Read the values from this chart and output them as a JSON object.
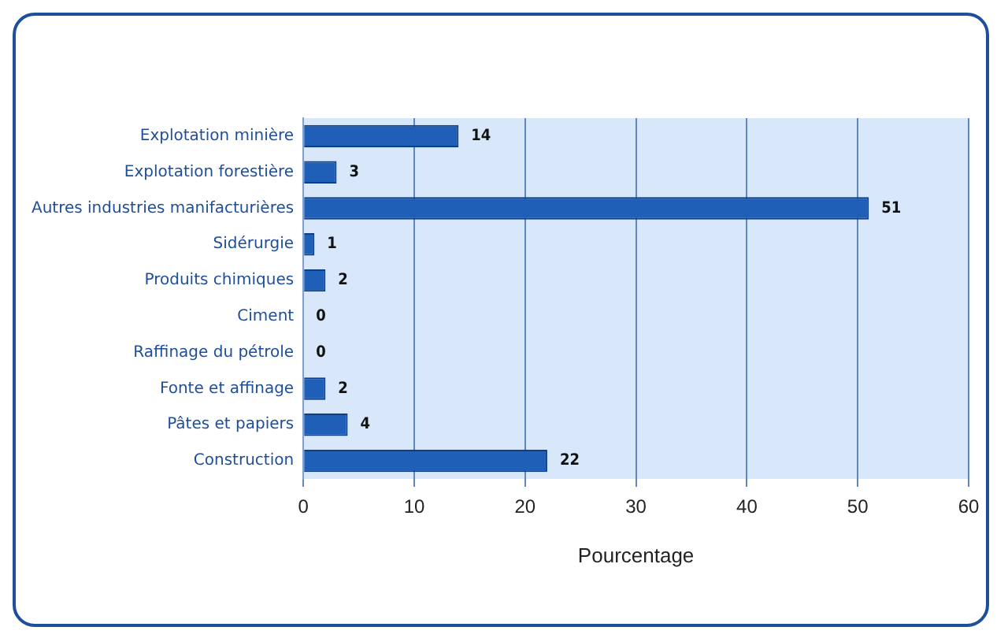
{
  "chart_data": {
    "type": "bar",
    "orientation": "horizontal",
    "xlabel": "Pourcentage",
    "categories": [
      "Explotation minière",
      "Explotation forestière",
      "Autres industries manifacturières",
      "Sidérurgie",
      "Produits chimiques",
      "Ciment",
      "Raffinage du pétrole",
      "Fonte et affinage",
      "Pâtes et papiers",
      "Construction"
    ],
    "values": [
      14,
      3,
      51,
      1,
      2,
      0,
      0,
      2,
      4,
      22
    ],
    "color": "#1f5fb8",
    "xlim": [
      0,
      60
    ],
    "xticks": [
      0,
      10,
      20,
      30,
      40,
      50,
      60
    ],
    "grid": "x",
    "legend": false,
    "data_labels": true
  }
}
